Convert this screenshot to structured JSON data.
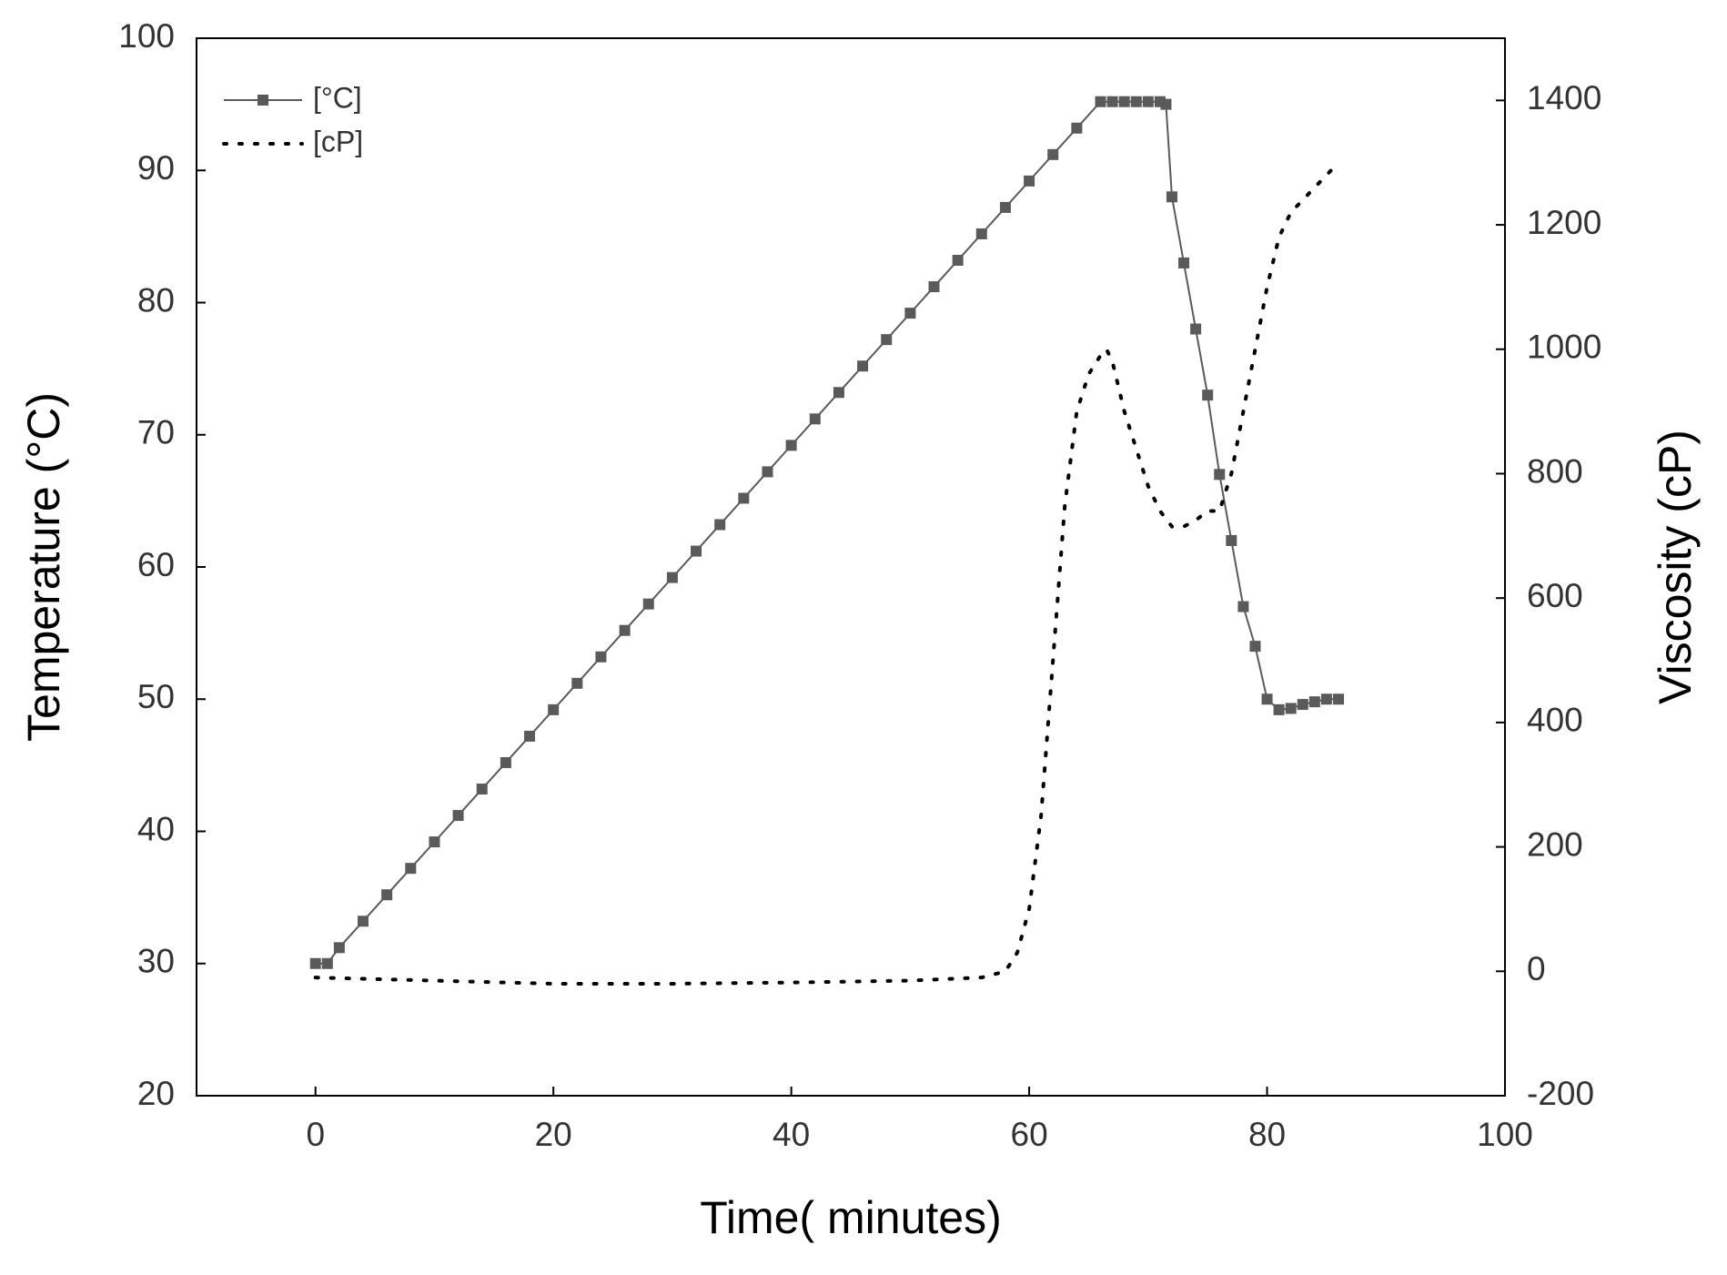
{
  "chart_data": {
    "type": "line",
    "x_label": "Time( minutes)",
    "y_label": "Temperature (°C)",
    "y2_label": "Viscosity (cP)",
    "xlim": [
      -10,
      100
    ],
    "xticks": [
      0,
      20,
      40,
      60,
      80,
      100
    ],
    "ylim": [
      20,
      100
    ],
    "yticks": [
      20,
      30,
      40,
      50,
      60,
      70,
      80,
      90,
      100
    ],
    "y2lim": [
      -200,
      1500
    ],
    "y2ticks": [
      -200,
      0,
      200,
      400,
      600,
      800,
      1000,
      1200,
      1400
    ],
    "legend": "upper-left",
    "series": [
      {
        "name": "[°C]",
        "color": "#5a5a5a",
        "marker": "square",
        "linestyle": "solid",
        "axis": "y",
        "x": [
          0,
          1,
          2,
          4,
          6,
          8,
          10,
          12,
          14,
          16,
          18,
          20,
          22,
          24,
          26,
          28,
          30,
          32,
          34,
          36,
          38,
          40,
          42,
          44,
          46,
          48,
          50,
          52,
          54,
          56,
          58,
          60,
          62,
          64,
          66,
          67,
          68,
          69,
          70,
          71,
          71.5,
          72,
          73,
          74,
          75,
          76,
          77,
          78,
          79,
          80,
          81,
          82,
          83,
          84,
          85,
          86
        ],
        "values": [
          30,
          30,
          31.2,
          33.2,
          35.2,
          37.2,
          39.2,
          41.2,
          43.2,
          45.2,
          47.2,
          49.2,
          51.2,
          53.2,
          55.2,
          57.2,
          59.2,
          61.2,
          63.2,
          65.2,
          67.2,
          69.2,
          71.2,
          73.2,
          75.2,
          77.2,
          79.2,
          81.2,
          83.2,
          85.2,
          87.2,
          89.2,
          91.2,
          93.2,
          95.2,
          95.2,
          95.2,
          95.2,
          95.2,
          95.2,
          95,
          88,
          83,
          78,
          73,
          67,
          62,
          57,
          54,
          50,
          49.2,
          49.3,
          49.6,
          49.8,
          50,
          50
        ]
      },
      {
        "name": "[cP]",
        "color": "#000000",
        "marker": "none",
        "linestyle": "dotted",
        "axis": "y2",
        "x": [
          0,
          10,
          20,
          30,
          40,
          50,
          56,
          58,
          59,
          60,
          61,
          62,
          63,
          64,
          65,
          66,
          66.5,
          67,
          68,
          69,
          70,
          71,
          72,
          73,
          74,
          75,
          76,
          77,
          78,
          79,
          80,
          81,
          82,
          84,
          86
        ],
        "values": [
          -10,
          -15,
          -20,
          -20,
          -18,
          -15,
          -10,
          0,
          30,
          100,
          250,
          500,
          750,
          900,
          960,
          990,
          1000,
          980,
          900,
          840,
          780,
          740,
          715,
          715,
          725,
          740,
          740,
          800,
          900,
          1000,
          1100,
          1180,
          1220,
          1260,
          1300
        ]
      }
    ]
  }
}
